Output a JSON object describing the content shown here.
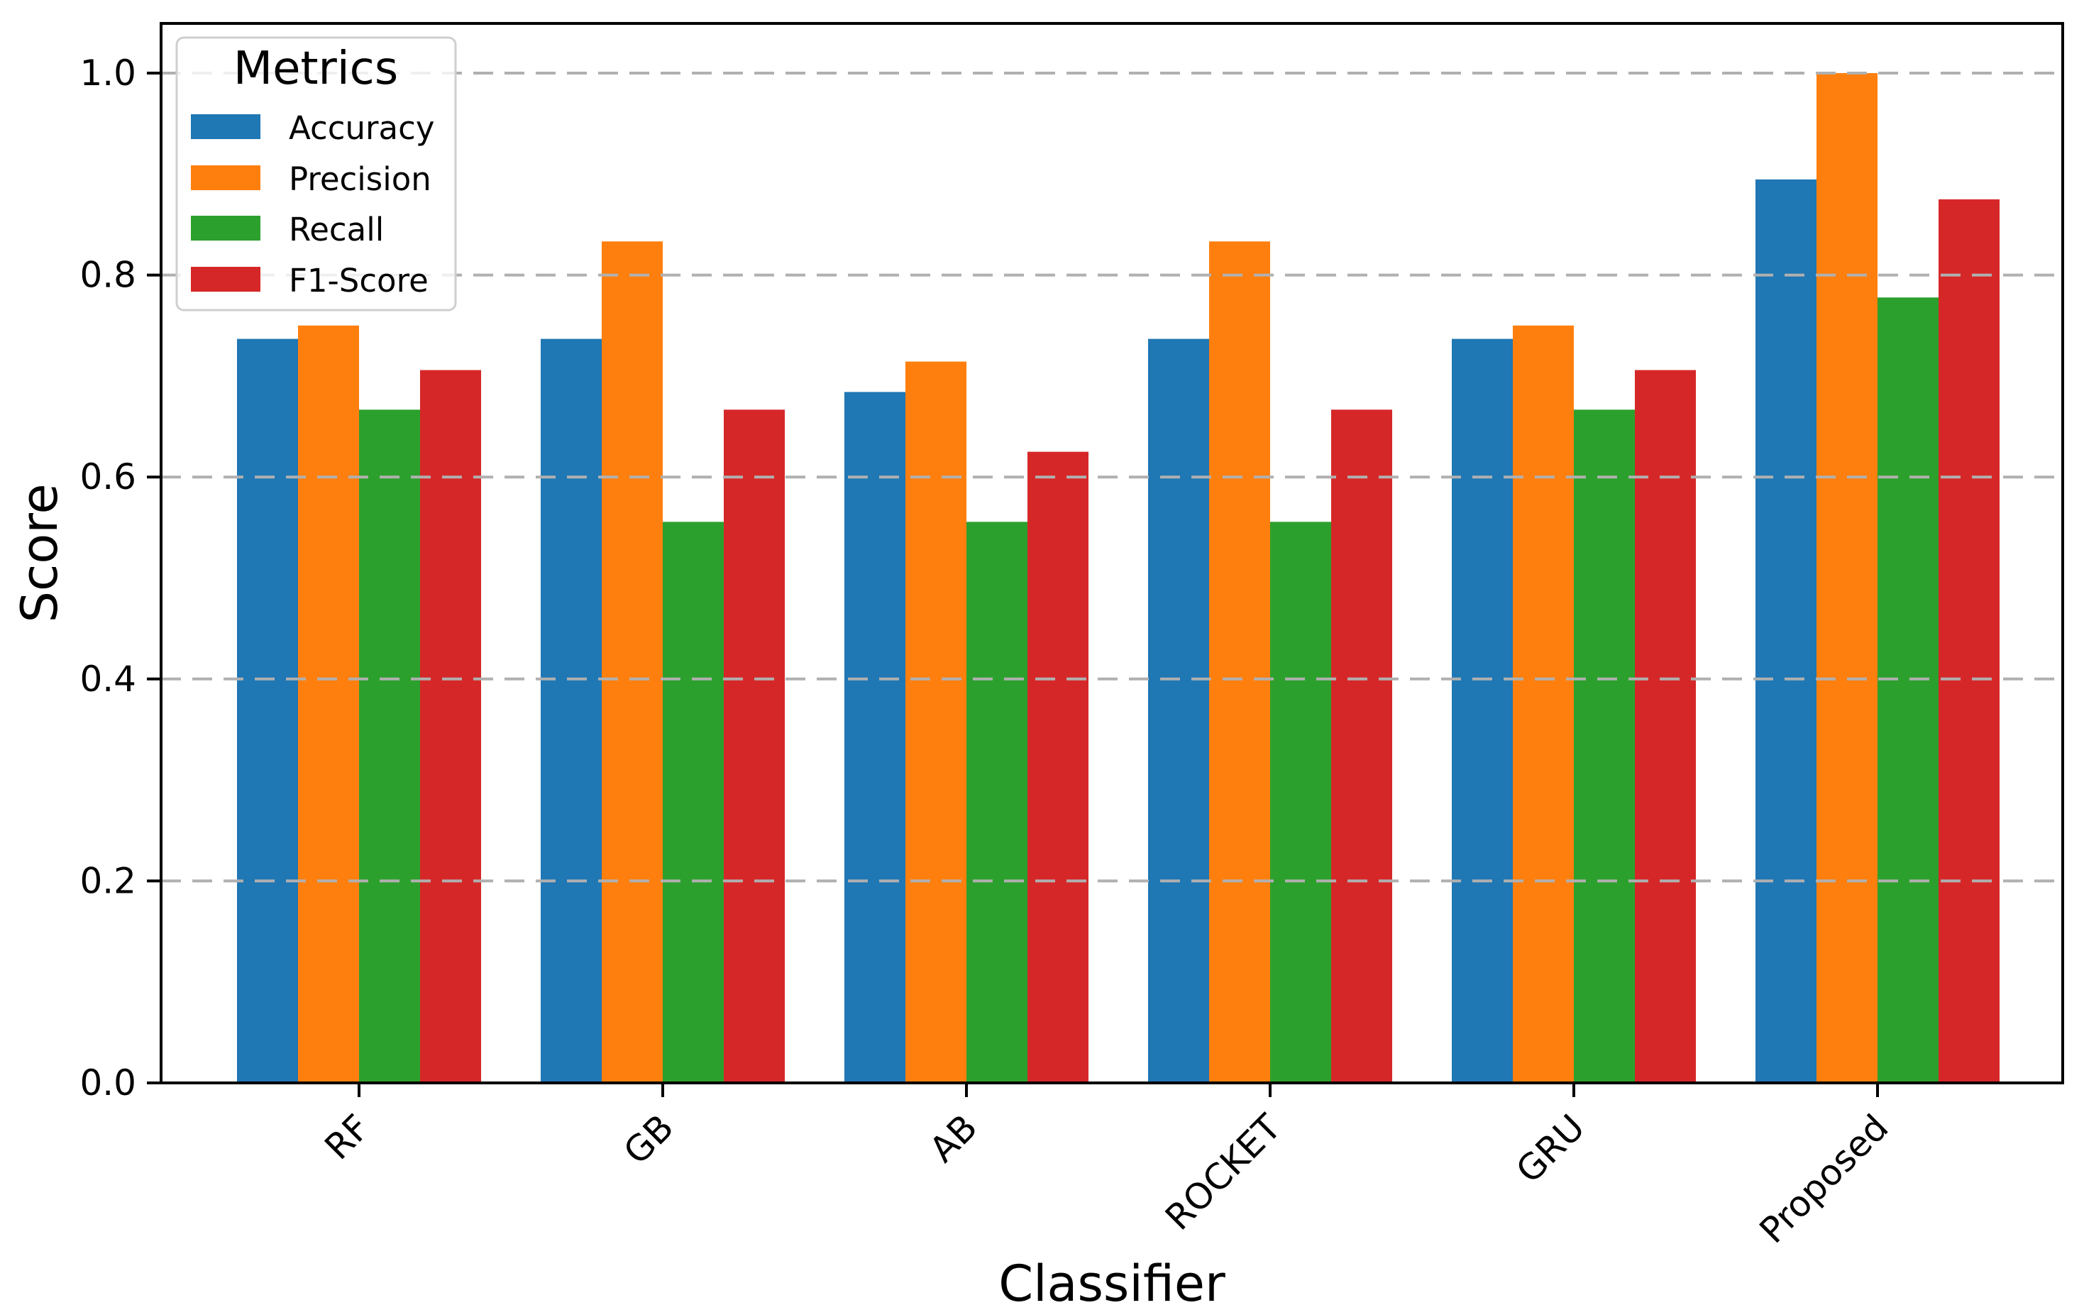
{
  "chart_data": {
    "type": "bar",
    "title": "",
    "xlabel": "Classifier",
    "ylabel": "Score",
    "categories": [
      "RF",
      "GB",
      "AB",
      "ROCKET",
      "GRU",
      "Proposed"
    ],
    "series": [
      {
        "name": "Accuracy",
        "color": "#1f77b4",
        "values": [
          0.7368,
          0.7368,
          0.6842,
          0.7368,
          0.7368,
          0.8947
        ]
      },
      {
        "name": "Precision",
        "color": "#ff7f0e",
        "values": [
          0.75,
          0.8333,
          0.7143,
          0.8333,
          0.75,
          1.0
        ]
      },
      {
        "name": "Recall",
        "color": "#2ca02c",
        "values": [
          0.6667,
          0.5556,
          0.5556,
          0.5556,
          0.6667,
          0.7778
        ]
      },
      {
        "name": "F1-Score",
        "color": "#d62728",
        "values": [
          0.7059,
          0.6667,
          0.625,
          0.6667,
          0.7059,
          0.875
        ]
      }
    ],
    "yticks": [
      "0.0",
      "0.2",
      "0.4",
      "0.6",
      "0.8",
      "1.0"
    ],
    "ylim": [
      0,
      1.05
    ],
    "grid": {
      "axis": "y",
      "style": "dashed",
      "color": "#b0b0b0",
      "on": true
    },
    "legend": {
      "title": "Metrics",
      "position": "upper left",
      "entries": [
        "Accuracy",
        "Precision",
        "Recall",
        "F1-Score"
      ]
    },
    "axis_color": "#000000",
    "background": "#ffffff"
  }
}
